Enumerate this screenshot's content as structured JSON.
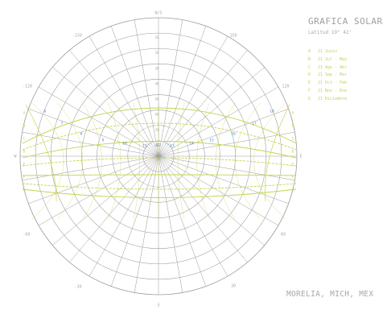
{
  "title": "GRAFICA SOLAR",
  "latitude_label": "Latitud 19° 42'",
  "location": "MORELIA, MICH, MEX",
  "cardinal": {
    "north": "N/S",
    "south": "S",
    "east": "E",
    "west": "W"
  },
  "azimuth_labels": [
    "150",
    "-150",
    "120",
    "-120",
    "60",
    "-60",
    "30",
    "-30"
  ],
  "altitude_labels": [
    "10",
    "20",
    "30",
    "40",
    "50",
    "60",
    "70",
    "80"
  ],
  "legend": [
    {
      "key": "A",
      "label": "21 Junio"
    },
    {
      "key": "B",
      "label": "21 Jul - May"
    },
    {
      "key": "C",
      "label": "21 Ago - Abr"
    },
    {
      "key": "D",
      "label": "21 Sep - Mar"
    },
    {
      "key": "E",
      "label": "21 Oct - Feb"
    },
    {
      "key": "F",
      "label": "21 Nov - Ene"
    },
    {
      "key": "G",
      "label": "21 Diciembre"
    }
  ],
  "hour_labels": [
    "12",
    "11",
    "13",
    "10",
    "14",
    "9",
    "15",
    "8",
    "16",
    "7",
    "17",
    "6",
    "18"
  ],
  "colors": {
    "grid": "#9a9a9a",
    "curves": "#c8d24c",
    "hours": "#3a8fc4",
    "text": "#a8a8a8"
  }
}
